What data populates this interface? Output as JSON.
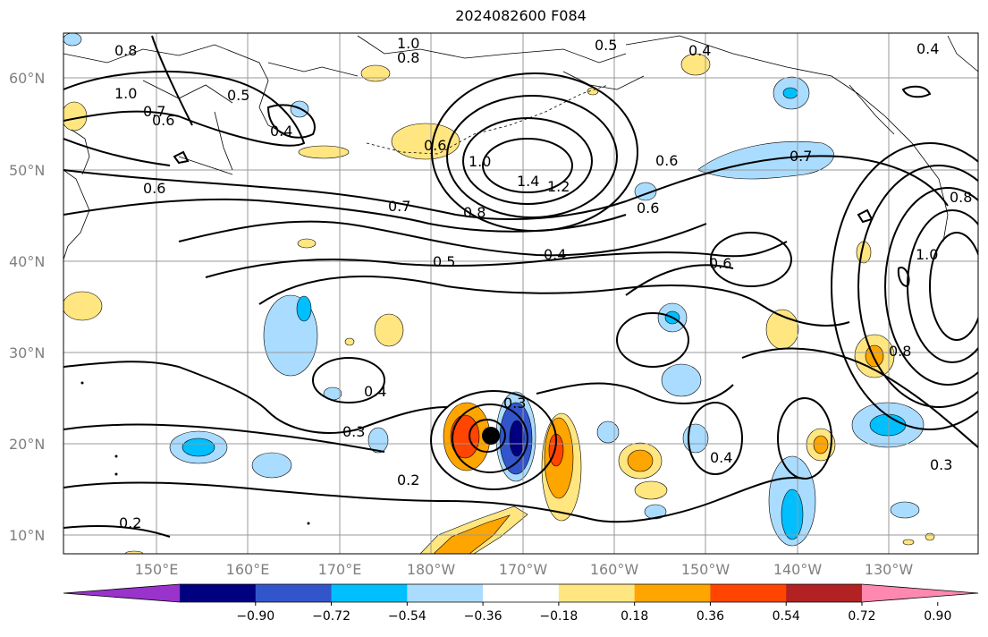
{
  "title": "2024082600 F084",
  "lat_labels": [
    "60°N",
    "50°N",
    "40°N",
    "30°N",
    "20°N",
    "10°N"
  ],
  "lon_labels": [
    "150°E",
    "160°E",
    "170°E",
    "180°W",
    "170°W",
    "160°W",
    "150°W",
    "140°W",
    "130°W"
  ],
  "colorbar": {
    "colors": [
      "#9933cc",
      "#000080",
      "#3355cc",
      "#00bfff",
      "#aadcff",
      "#ffffff",
      "#ffe680",
      "#ffa500",
      "#ff4500",
      "#b22222",
      "#ff88b0"
    ],
    "ticks": [
      "−0.90",
      "−0.72",
      "−0.54",
      "−0.36",
      "−0.18",
      "0.18",
      "0.36",
      "0.54",
      "0.72",
      "0.90"
    ]
  },
  "contour_labels": [
    "0.8",
    "1.0",
    "0.8",
    "0.5",
    "0.4",
    "0.4",
    "0.7",
    "0.6",
    "0.5",
    "0.4",
    "1.0",
    "0.6",
    "1.0",
    "1.4",
    "1.2",
    "0.6",
    "0.6",
    "0.7",
    "0.7",
    "0.8",
    "0.6",
    "0.5",
    "0.4",
    "0.6",
    "1.0",
    "0.8",
    "0.4",
    "0.3",
    "0.2",
    "0.3",
    "0.4",
    "0.3",
    "0.2",
    "0.8"
  ],
  "storm_marker": "tropical-cyclone-center"
}
